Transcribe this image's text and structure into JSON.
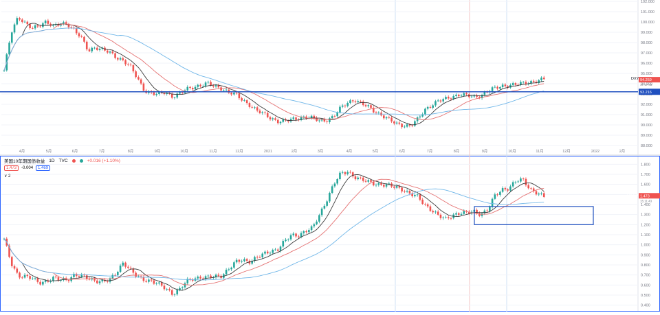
{
  "colors": {
    "up": "#26a69a",
    "down": "#ef5350",
    "ma_short": "#3b3b3b",
    "ma_mid": "#e57373",
    "ma_long": "#6fb6e8",
    "hline": "#1f4fbf",
    "box": "#1f4fbf",
    "axis_text": "#787b86"
  },
  "chart_data": [
    {
      "type": "candlestick",
      "title": "DXY",
      "ylim": [
        88.0,
        102.0
      ],
      "yticks": [
        "88.000",
        "89.000",
        "90.000",
        "91.000",
        "92.000",
        "93.000",
        "94.000",
        "95.000",
        "96.000",
        "97.000",
        "98.000",
        "99.000",
        "100.000",
        "101.000",
        "102.000"
      ],
      "xticks": [
        "4月",
        "5月",
        "6月",
        "7月",
        "8月",
        "9月",
        "10月",
        "11月",
        "12月",
        "2021",
        "2月",
        "3月",
        "4月",
        "5月",
        "6月",
        "7月",
        "8月",
        "9月",
        "10月",
        "11月",
        "12月",
        "2022",
        "2月"
      ],
      "price_label": "DXY",
      "last_price": "94.259",
      "countdown": "17:17:43",
      "hline_value": "93.216",
      "close_series": [
        95.2,
        99.0,
        100.6,
        99.8,
        99.3,
        99.7,
        100.1,
        99.5,
        99.8,
        99.9,
        99.2,
        98.4,
        97.2,
        97.6,
        97.3,
        97.0,
        96.6,
        96.3,
        95.6,
        94.5,
        93.4,
        93.1,
        92.9,
        93.2,
        92.8,
        93.0,
        93.4,
        93.7,
        93.9,
        94.0,
        93.7,
        93.6,
        93.2,
        92.9,
        92.4,
        92.0,
        91.4,
        91.0,
        90.7,
        90.4,
        90.3,
        90.5,
        90.7,
        90.8,
        90.6,
        90.4,
        90.5,
        90.8,
        91.6,
        92.2,
        92.5,
        92.0,
        91.7,
        91.3,
        90.9,
        90.4,
        90.1,
        90.0,
        89.9,
        90.5,
        91.5,
        92.0,
        92.3,
        92.5,
        92.8,
        93.0,
        92.8,
        92.7,
        92.9,
        93.3,
        93.5,
        93.8,
        93.9,
        93.9,
        94.0,
        94.2,
        94.3,
        94.4
      ]
    },
    {
      "type": "candlestick",
      "title": "美国10年期国债收益",
      "timeframe": "1D",
      "source": "TVC",
      "change": "+0.016 (+1.10%)",
      "bid": "1.473",
      "spread": "-0.004",
      "ask": "1.469",
      "indicator_legend": "∨ 2",
      "ylim": [
        0.35,
        1.85
      ],
      "yticks": [
        "0.400",
        "0.500",
        "0.600",
        "0.700",
        "0.800",
        "0.900",
        "1.000",
        "1.100",
        "1.200",
        "1.300",
        "1.400",
        "1.500",
        "1.600",
        "1.700",
        "1.800"
      ],
      "price_label": "US10Y",
      "last_price": "1.473",
      "countdown": "15:11:43",
      "close_series": [
        1.05,
        0.82,
        0.7,
        0.68,
        0.66,
        0.63,
        0.64,
        0.66,
        0.65,
        0.66,
        0.7,
        0.68,
        0.67,
        0.65,
        0.63,
        0.64,
        0.73,
        0.83,
        0.74,
        0.68,
        0.66,
        0.64,
        0.6,
        0.57,
        0.52,
        0.55,
        0.63,
        0.67,
        0.68,
        0.67,
        0.68,
        0.7,
        0.76,
        0.82,
        0.85,
        0.84,
        0.87,
        0.9,
        0.94,
        0.96,
        1.03,
        1.09,
        1.1,
        1.14,
        1.16,
        1.3,
        1.45,
        1.6,
        1.7,
        1.73,
        1.68,
        1.64,
        1.62,
        1.61,
        1.6,
        1.58,
        1.57,
        1.55,
        1.5,
        1.47,
        1.4,
        1.35,
        1.28,
        1.25,
        1.3,
        1.32,
        1.31,
        1.33,
        1.31,
        1.35,
        1.48,
        1.55,
        1.57,
        1.63,
        1.64,
        1.56,
        1.52,
        1.47
      ],
      "highlight_box": {
        "x_from": "2021-09",
        "x_to": "2021-12",
        "y_from": 1.2,
        "y_to": 1.38
      }
    }
  ]
}
